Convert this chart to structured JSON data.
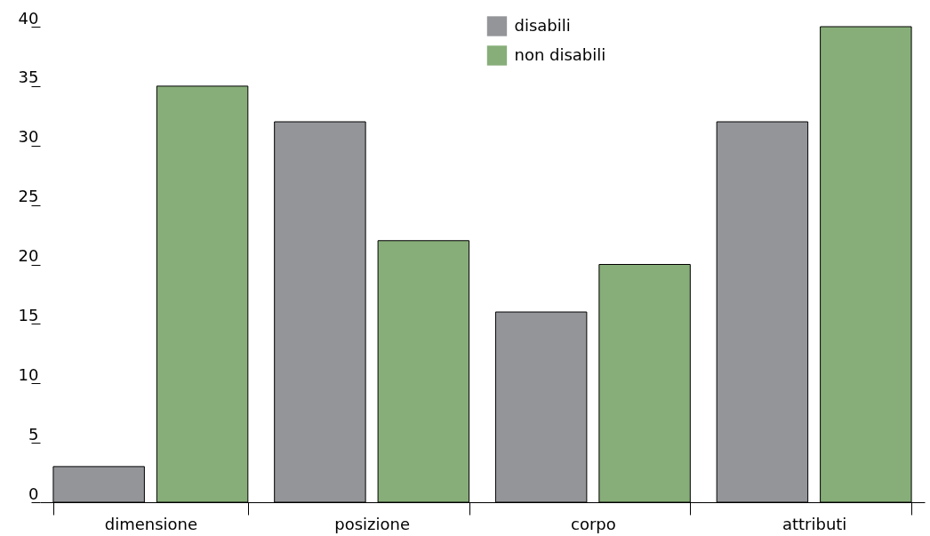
{
  "chart_data": {
    "type": "bar",
    "categories": [
      "dimensione",
      "posizione",
      "corpo",
      "attributi"
    ],
    "series": [
      {
        "name": "disabili",
        "color": "#939598",
        "values": [
          3,
          32,
          16,
          32
        ]
      },
      {
        "name": "non disabili",
        "color": "#87ae79",
        "values": [
          35,
          22,
          20,
          40
        ]
      }
    ],
    "ylim": [
      0,
      40
    ],
    "yticks": [
      0,
      5,
      10,
      15,
      20,
      25,
      30,
      35,
      40
    ],
    "grid": false,
    "legend": "top"
  }
}
